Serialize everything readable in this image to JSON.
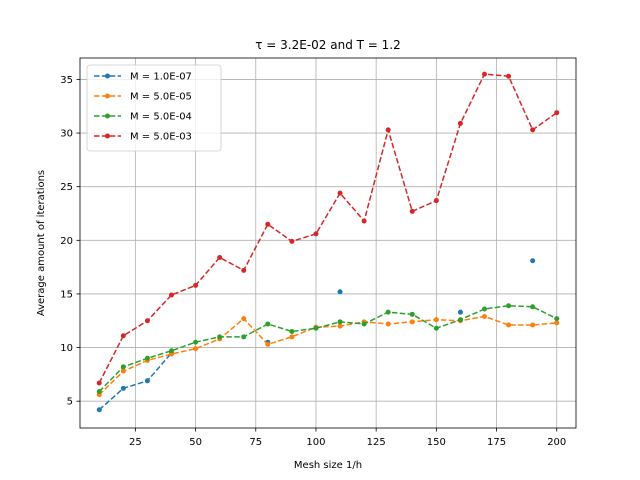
{
  "chart_data": {
    "type": "line",
    "title": "τ = 3.2E-02 and T = 1.2",
    "xlabel": "Mesh size 1/h",
    "ylabel": "Average amount of iterations",
    "xlim": [
      2,
      208
    ],
    "ylim": [
      2.5,
      37
    ],
    "xticks": [
      25,
      50,
      75,
      100,
      125,
      150,
      175,
      200
    ],
    "yticks": [
      5,
      10,
      15,
      20,
      25,
      30,
      35
    ],
    "grid": true,
    "legend_position": "top-left",
    "x": [
      10,
      20,
      30,
      40,
      50,
      60,
      70,
      80,
      90,
      100,
      110,
      120,
      130,
      140,
      150,
      160,
      170,
      180,
      190,
      200
    ],
    "series": [
      {
        "name": "M = 1.0E-07",
        "color": "#1f77b4",
        "style": "dashed",
        "values": [
          4.2,
          6.2,
          6.9,
          9.5,
          null,
          null,
          null,
          10.5,
          null,
          null,
          15.2,
          null,
          null,
          null,
          null,
          13.3,
          null,
          null,
          18.1,
          null
        ]
      },
      {
        "name": "M = 5.0E-05",
        "color": "#ff7f0e",
        "style": "dashed",
        "values": [
          5.6,
          7.8,
          8.8,
          9.4,
          9.9,
          10.8,
          12.7,
          10.3,
          11.0,
          11.9,
          12.0,
          12.4,
          12.2,
          12.4,
          12.6,
          12.5,
          12.9,
          12.1,
          12.1,
          12.3
        ]
      },
      {
        "name": "M = 5.0E-04",
        "color": "#2ca02c",
        "style": "dashed",
        "values": [
          5.9,
          8.2,
          9.0,
          9.7,
          10.5,
          11.0,
          11.0,
          12.2,
          11.5,
          11.8,
          12.4,
          12.2,
          13.3,
          13.1,
          11.8,
          12.6,
          13.6,
          13.9,
          13.8,
          12.7
        ]
      },
      {
        "name": "M = 5.0E-03",
        "color": "#d62728",
        "style": "dashed",
        "values": [
          6.7,
          11.1,
          12.5,
          14.9,
          15.8,
          18.4,
          17.2,
          21.5,
          19.9,
          20.6,
          24.4,
          21.8,
          30.3,
          22.7,
          23.7,
          30.9,
          35.5,
          35.3,
          30.3,
          31.9
        ]
      }
    ]
  }
}
